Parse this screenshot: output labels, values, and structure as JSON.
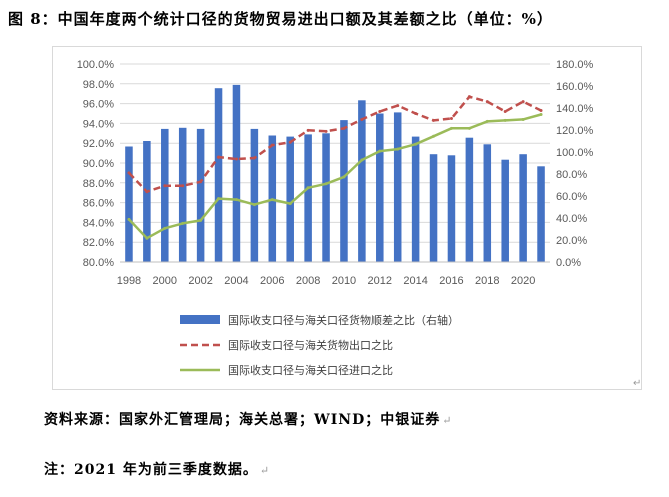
{
  "title": "图 8：中国年度两个统计口径的货物贸易进出口额及其差额之比（单位：%）",
  "source": "资料来源：国家外汇管理局；海关总署；WIND；中银证券",
  "note": "注：2021 年为前三季度数据。",
  "chart_data": {
    "type": "bar+line",
    "years": [
      1998,
      1999,
      2000,
      2001,
      2002,
      2003,
      2004,
      2005,
      2006,
      2007,
      2008,
      2009,
      2010,
      2011,
      2012,
      2013,
      2014,
      2015,
      2016,
      2017,
      2018,
      2019,
      2020,
      2021
    ],
    "x_tick_labels": [
      "1998",
      "2000",
      "2002",
      "2004",
      "2006",
      "2008",
      "2010",
      "2012",
      "2014",
      "2016",
      "2018",
      "2020"
    ],
    "left_axis": {
      "min": 80,
      "max": 100,
      "step": 2,
      "tick_labels": [
        "80.0%",
        "82.0%",
        "84.0%",
        "86.0%",
        "88.0%",
        "90.0%",
        "92.0%",
        "94.0%",
        "96.0%",
        "98.0%",
        "100.0%"
      ]
    },
    "right_axis": {
      "min": 0,
      "max": 180,
      "step": 20,
      "tick_labels": [
        "0.0%",
        "20.0%",
        "40.0%",
        "60.0%",
        "80.0%",
        "100.0%",
        "120.0%",
        "140.0%",
        "160.0%",
        "180.0%"
      ]
    },
    "series": [
      {
        "name": "国际收支口径与海关口径货物顺差之比（右轴）",
        "kind": "bar",
        "axis": "right",
        "color": "#4472c4",
        "values": [
          105,
          110,
          121,
          122,
          121,
          158,
          161,
          121,
          115,
          114,
          116,
          117,
          129,
          147,
          135,
          136,
          114,
          98,
          97,
          113,
          107,
          93,
          98,
          87
        ]
      },
      {
        "name": "国际收支口径与海关货物出口之比",
        "kind": "line",
        "style": "dashed",
        "axis": "left",
        "color": "#c0504d",
        "values": [
          89.0,
          87.1,
          87.7,
          87.7,
          88.1,
          90.6,
          90.4,
          90.5,
          91.8,
          92.1,
          93.3,
          93.2,
          93.5,
          94.4,
          95.2,
          95.8,
          95.0,
          94.3,
          94.5,
          96.7,
          96.2,
          95.2,
          96.2,
          95.3
        ]
      },
      {
        "name": "国际收支口径与海关口径进口之比",
        "kind": "line",
        "style": "solid",
        "axis": "left",
        "color": "#9bbb59",
        "values": [
          84.3,
          82.4,
          83.4,
          83.9,
          84.2,
          86.4,
          86.3,
          85.8,
          86.3,
          85.9,
          87.5,
          87.9,
          88.6,
          90.3,
          91.2,
          91.4,
          91.9,
          92.7,
          93.5,
          93.5,
          94.2,
          94.3,
          94.4,
          94.9
        ]
      }
    ],
    "legend_placement": "bottom",
    "grid": "horizontal"
  }
}
